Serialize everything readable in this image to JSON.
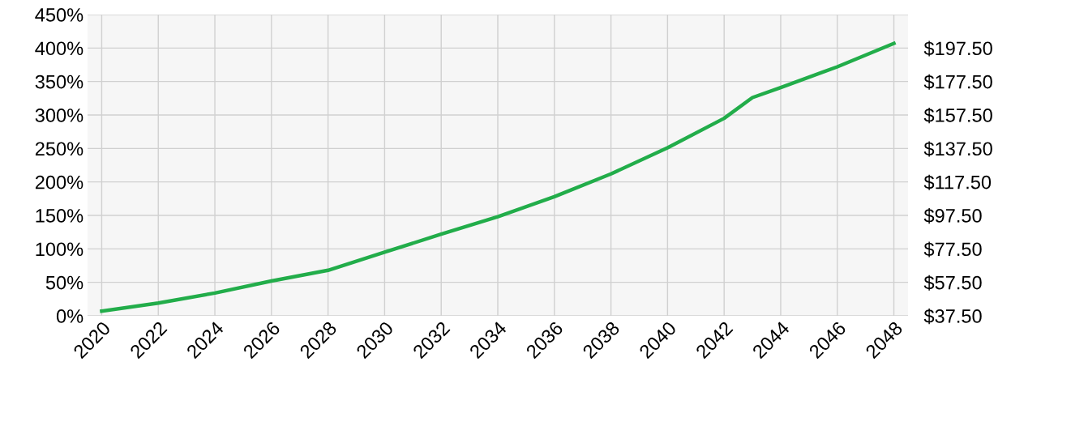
{
  "chart_data": {
    "type": "line",
    "x": [
      2020,
      2022,
      2024,
      2026,
      2028,
      2030,
      2032,
      2034,
      2036,
      2038,
      2040,
      2042,
      2043,
      2044,
      2046,
      2048
    ],
    "series": [
      {
        "color": "#22ad4a",
        "values": [
          7,
          19,
          34,
          52,
          68,
          95,
          122,
          148,
          178,
          212,
          251,
          295,
          326,
          341,
          372,
          407
        ]
      }
    ],
    "xlim": [
      2019.5,
      2048.5
    ],
    "xticks": [
      2020,
      2022,
      2024,
      2026,
      2028,
      2030,
      2032,
      2034,
      2036,
      2038,
      2040,
      2042,
      2044,
      2046,
      2048
    ],
    "ylim": [
      0,
      450
    ],
    "yticks": [
      {
        "value": 0,
        "label": "0%"
      },
      {
        "value": 50,
        "label": "50%"
      },
      {
        "value": 100,
        "label": "100%"
      },
      {
        "value": 150,
        "label": "150%"
      },
      {
        "value": 200,
        "label": "200%"
      },
      {
        "value": 250,
        "label": "250%"
      },
      {
        "value": 300,
        "label": "300%"
      },
      {
        "value": 350,
        "label": "350%"
      },
      {
        "value": 400,
        "label": "400%"
      },
      {
        "value": 450,
        "label": "450%"
      }
    ],
    "y2lim": [
      37.5,
      217.5
    ],
    "y2ticks": [
      {
        "value": 37.5,
        "label": "$37.50"
      },
      {
        "value": 57.5,
        "label": "$57.50"
      },
      {
        "value": 77.5,
        "label": "$77.50"
      },
      {
        "value": 97.5,
        "label": "$97.50"
      },
      {
        "value": 117.5,
        "label": "$117.50"
      },
      {
        "value": 137.5,
        "label": "$137.50"
      },
      {
        "value": 157.5,
        "label": "$157.50"
      },
      {
        "value": 177.5,
        "label": "$177.50"
      },
      {
        "value": 197.5,
        "label": "$197.50"
      }
    ],
    "grid": true,
    "marker": "none",
    "line_style": "solid"
  }
}
